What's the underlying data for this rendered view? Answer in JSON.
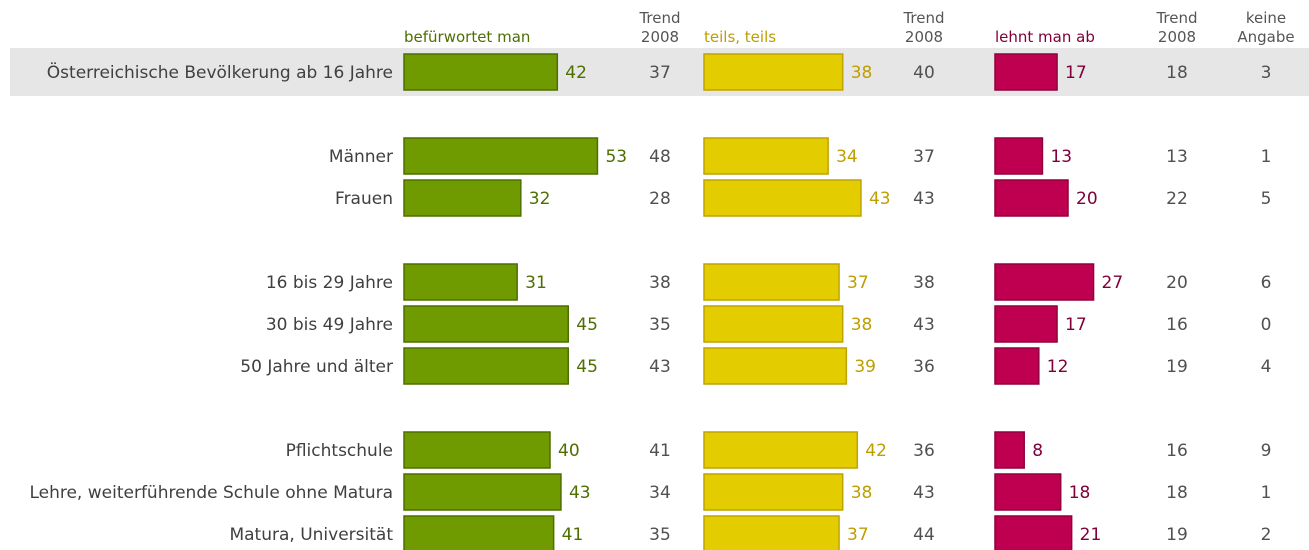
{
  "chart_data": {
    "type": "bar",
    "headers": {
      "col1": "befürwortet man",
      "trend1": [
        "Trend",
        "2008"
      ],
      "col2": "teils, teils",
      "trend2": [
        "Trend",
        "2008"
      ],
      "col3": "lehnt man ab",
      "trend3": [
        "Trend",
        "2008"
      ],
      "keine": [
        "keine",
        "Angabe"
      ]
    },
    "categories": [
      "Österreichische Bevölkerung ab 16 Jahre",
      "Männer",
      "Frauen",
      "16 bis 29 Jahre",
      "30 bis 49 Jahre",
      "50 Jahre und älter",
      "Pflichtschule",
      "Lehre, weiterführende Schule ohne Matura",
      "Matura, Universität"
    ],
    "groups": [
      [
        0
      ],
      [
        1,
        2
      ],
      [
        3,
        4,
        5
      ],
      [
        6,
        7,
        8
      ]
    ],
    "highlight_row": 0,
    "series": [
      {
        "key": "col1",
        "values": [
          42,
          53,
          32,
          31,
          45,
          45,
          40,
          43,
          41
        ],
        "color": "#6f9a00",
        "border": "#4e6e00",
        "text_color": "#4e6e00"
      },
      {
        "key": "col2",
        "values": [
          38,
          34,
          43,
          37,
          38,
          39,
          42,
          38,
          37
        ],
        "color": "#e3cd00",
        "border": "#bfa300",
        "text_color": "#bf9e00"
      },
      {
        "key": "col3",
        "values": [
          17,
          13,
          20,
          27,
          17,
          12,
          8,
          18,
          21
        ],
        "color": "#bf0050",
        "border": "#90003c",
        "text_color": "#80003a"
      }
    ],
    "trend_2008": {
      "col1": [
        37,
        48,
        28,
        38,
        35,
        43,
        41,
        34,
        35
      ],
      "col2": [
        40,
        37,
        43,
        38,
        43,
        36,
        36,
        43,
        44
      ],
      "col3": [
        18,
        13,
        22,
        20,
        16,
        19,
        16,
        18,
        19
      ]
    },
    "keine_angabe": [
      3,
      1,
      5,
      6,
      0,
      4,
      9,
      1,
      2
    ],
    "colors": {
      "highlight_bg": "#e6e6e6",
      "header_gray": "#555555"
    }
  }
}
